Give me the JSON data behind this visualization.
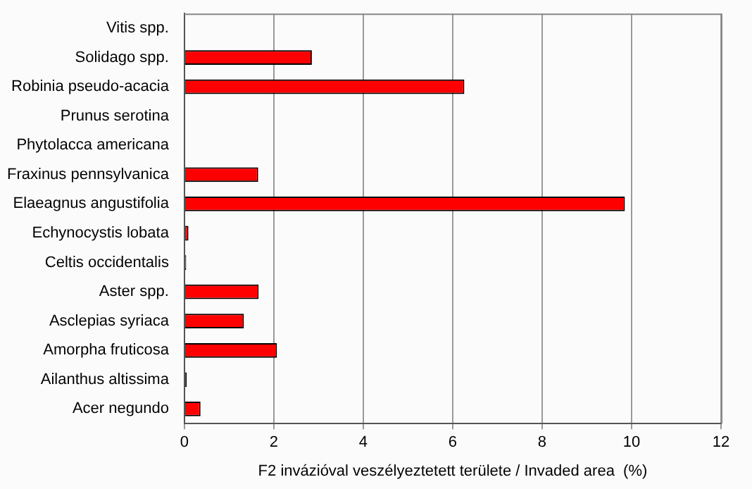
{
  "chart_data": {
    "type": "bar",
    "orientation": "horizontal",
    "xlabel": "F2 invázióval veszélyeztetett területe / Invaded area  (%)",
    "categories": [
      "Vitis spp.",
      "Solidago spp.",
      "Robinia pseudo-acacia",
      "Prunus serotina",
      "Phytolacca americana",
      "Fraxinus pennsylvanica",
      "Elaeagnus angustifolia",
      "Echynocystis lobata",
      "Celtis occidentalis",
      "Aster spp.",
      "Asclepias syriaca",
      "Amorpha fruticosa",
      "Ailanthus altissima",
      "Acer negundo"
    ],
    "values": [
      0,
      2.85,
      6.26,
      0,
      0,
      1.65,
      9.85,
      0.09,
      0.04,
      1.66,
      1.33,
      2.07,
      0.05,
      0.36
    ],
    "color": "#ff0000",
    "xlim": [
      0,
      12
    ],
    "xticks": [
      0,
      2,
      4,
      6,
      8,
      10,
      12
    ],
    "grid": "x",
    "legend": false
  }
}
